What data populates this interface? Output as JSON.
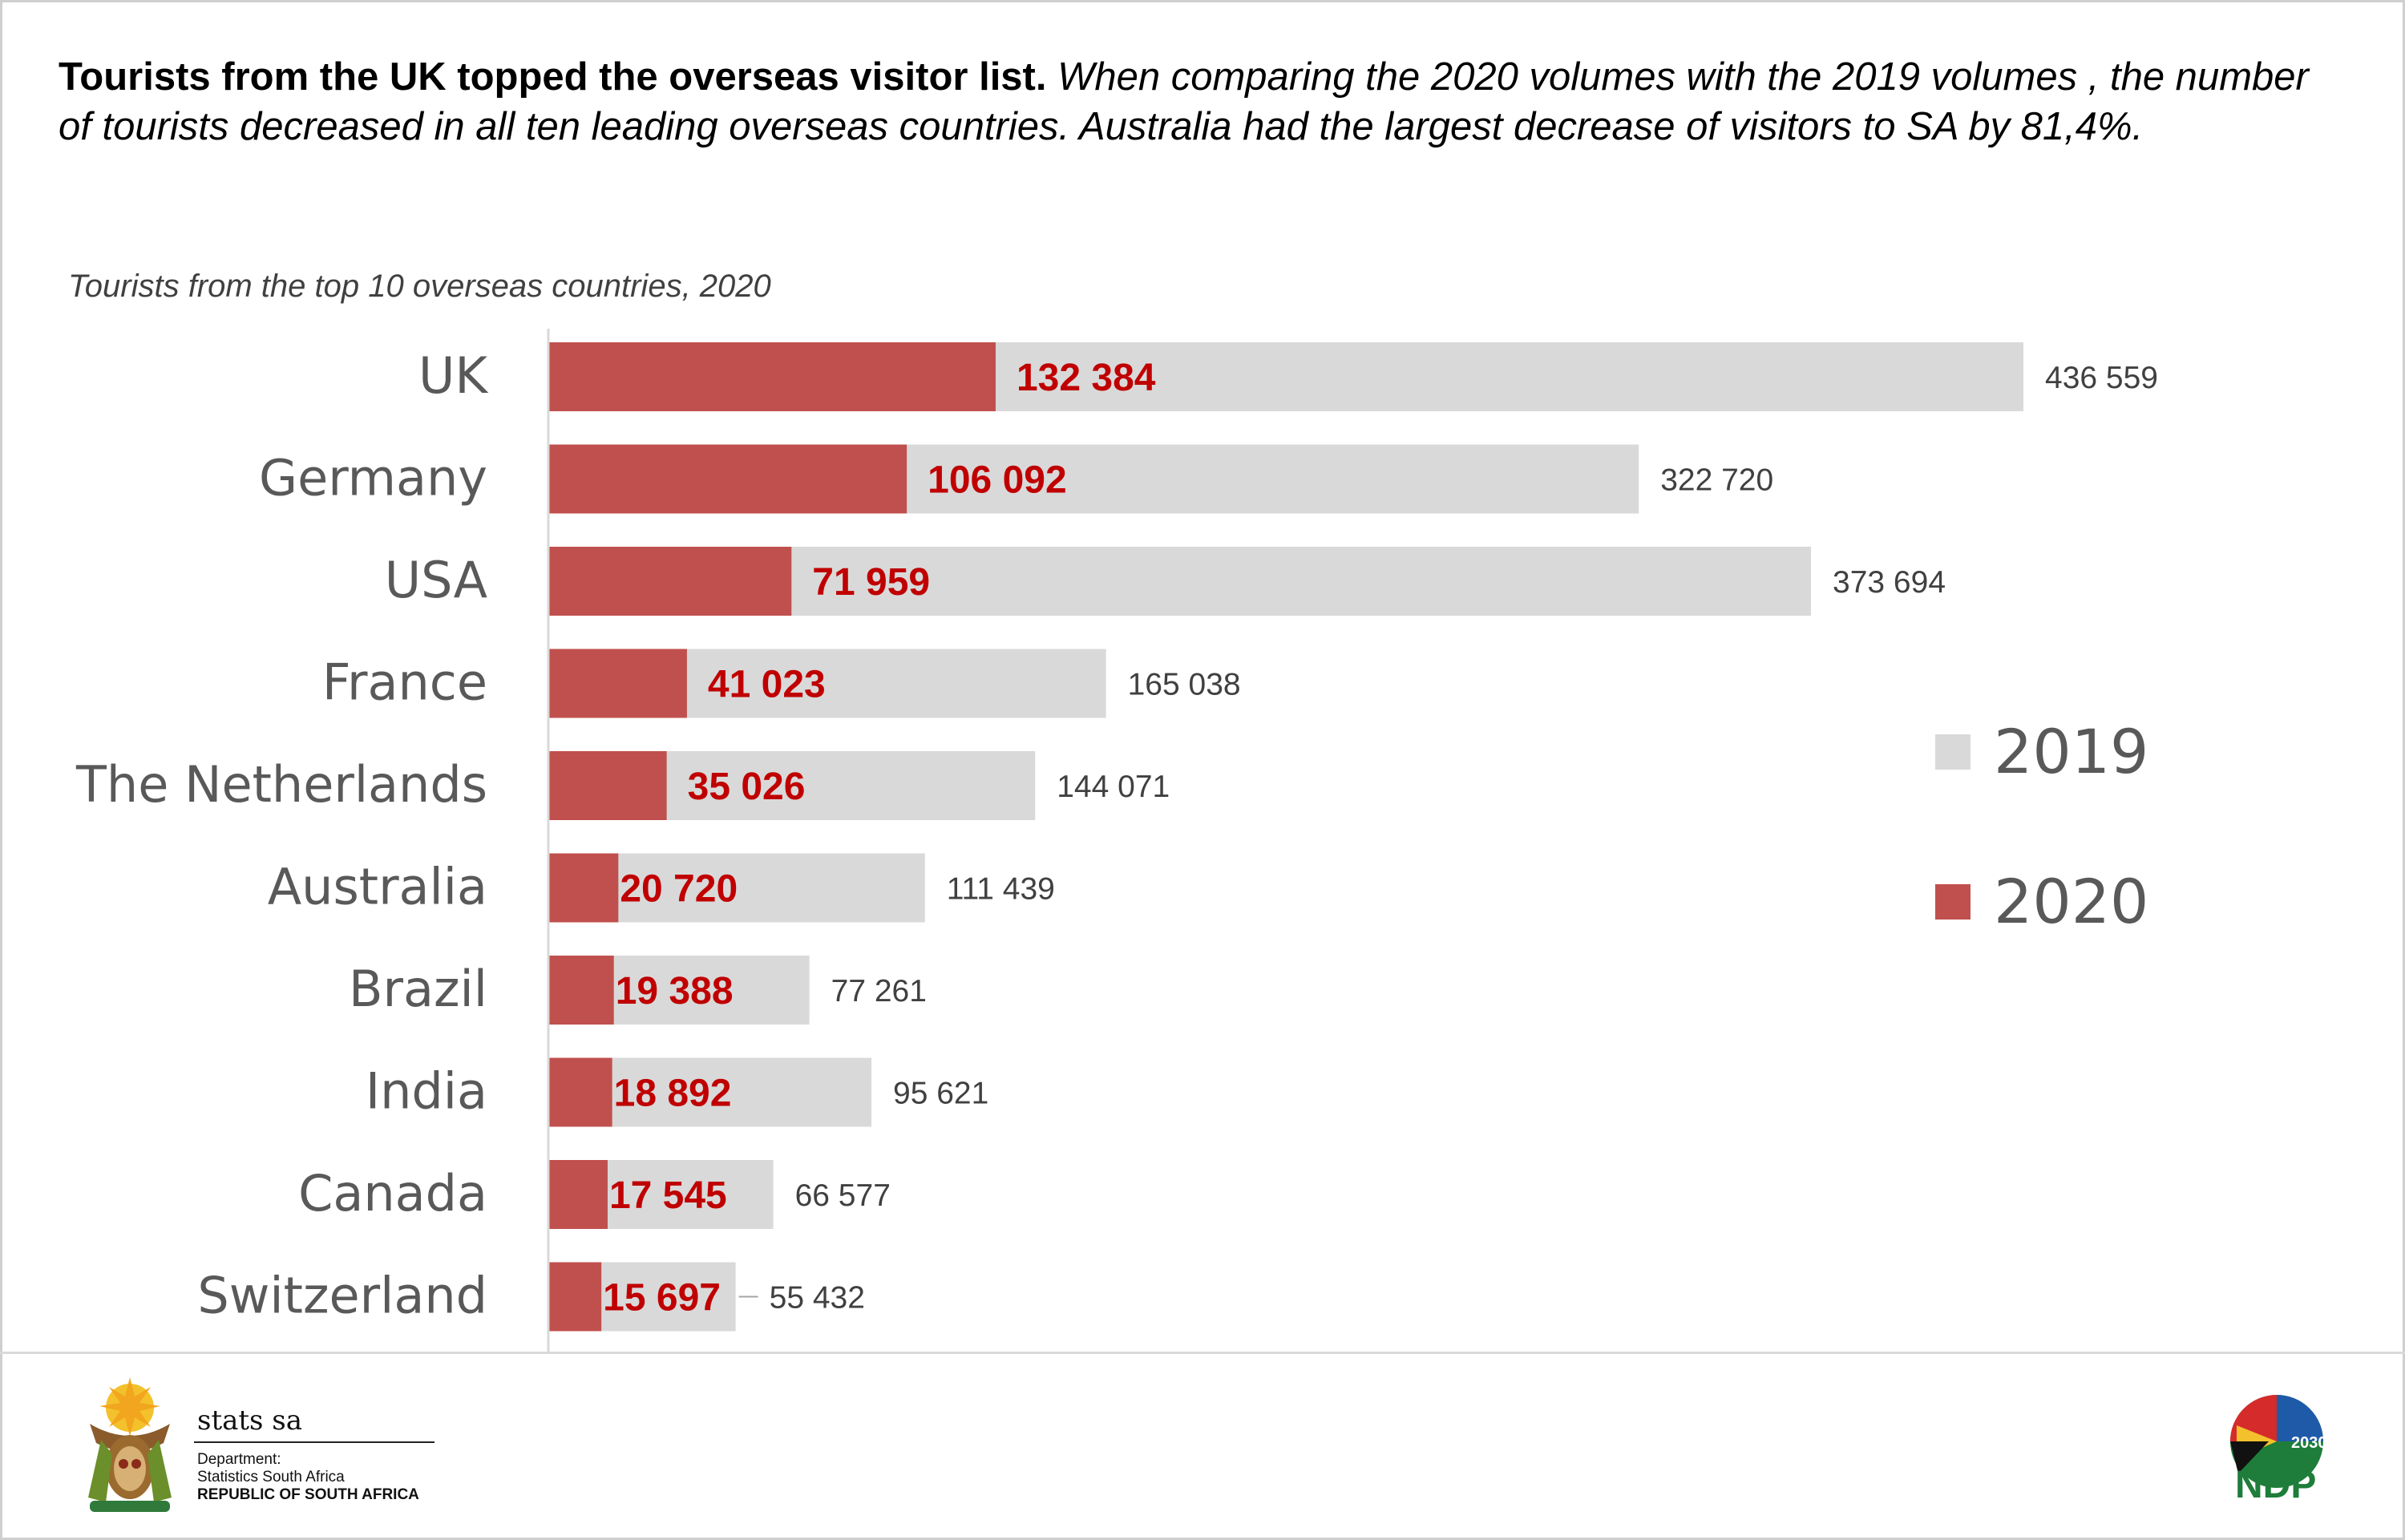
{
  "headline": {
    "bold": "Tourists from the UK topped the overseas visitor list.",
    "italic": "When comparing the 2020 volumes with the 2019 volumes , the number of tourists decreased in all ten leading overseas countries. Australia had the largest decrease of visitors to SA by 81,4%."
  },
  "chart_data": {
    "type": "bar",
    "orientation": "horizontal",
    "title": "Tourists from the top 10 overseas countries, 2020",
    "categories": [
      "UK",
      "Germany",
      "USA",
      "France",
      "The Netherlands",
      "Australia",
      "Brazil",
      "India",
      "Canada",
      "Switzerland"
    ],
    "series": [
      {
        "name": "2019",
        "color": "#d9d9d9",
        "label_color": "#404040",
        "values": [
          436559,
          322720,
          373694,
          165038,
          144071,
          111439,
          77261,
          95621,
          66577,
          55432
        ],
        "labels": [
          "436 559",
          "322 720",
          "373 694",
          "165 038",
          "144 071",
          "111 439",
          "77 261",
          "95 621",
          "66 577",
          "55 432"
        ]
      },
      {
        "name": "2020",
        "color": "#c0504d",
        "label_color": "#c00000",
        "values": [
          132384,
          106092,
          71959,
          41023,
          35026,
          20720,
          19388,
          18892,
          17545,
          15697
        ],
        "labels": [
          "132 384",
          "106 092",
          "71 959",
          "41 023",
          "35 026",
          "20 720",
          "19 388",
          "18 892",
          "17 545",
          "15 697"
        ]
      }
    ],
    "legend": {
      "position": "right",
      "order": [
        "2019",
        "2020"
      ]
    },
    "xlim": [
      0,
      436559
    ],
    "grid": false,
    "xaxis_visible": false
  },
  "footer": {
    "org_name": "stats sa",
    "dept_line1": "Department:",
    "dept_line2": "Statistics South Africa",
    "dept_line3": "REPUBLIC OF SOUTH AFRICA",
    "ndp_year": "2030",
    "ndp_text": "NDP"
  },
  "icons": {
    "left_logo": "coat-of-arms-icon",
    "right_logo": "ndp-2030-logo-icon"
  }
}
